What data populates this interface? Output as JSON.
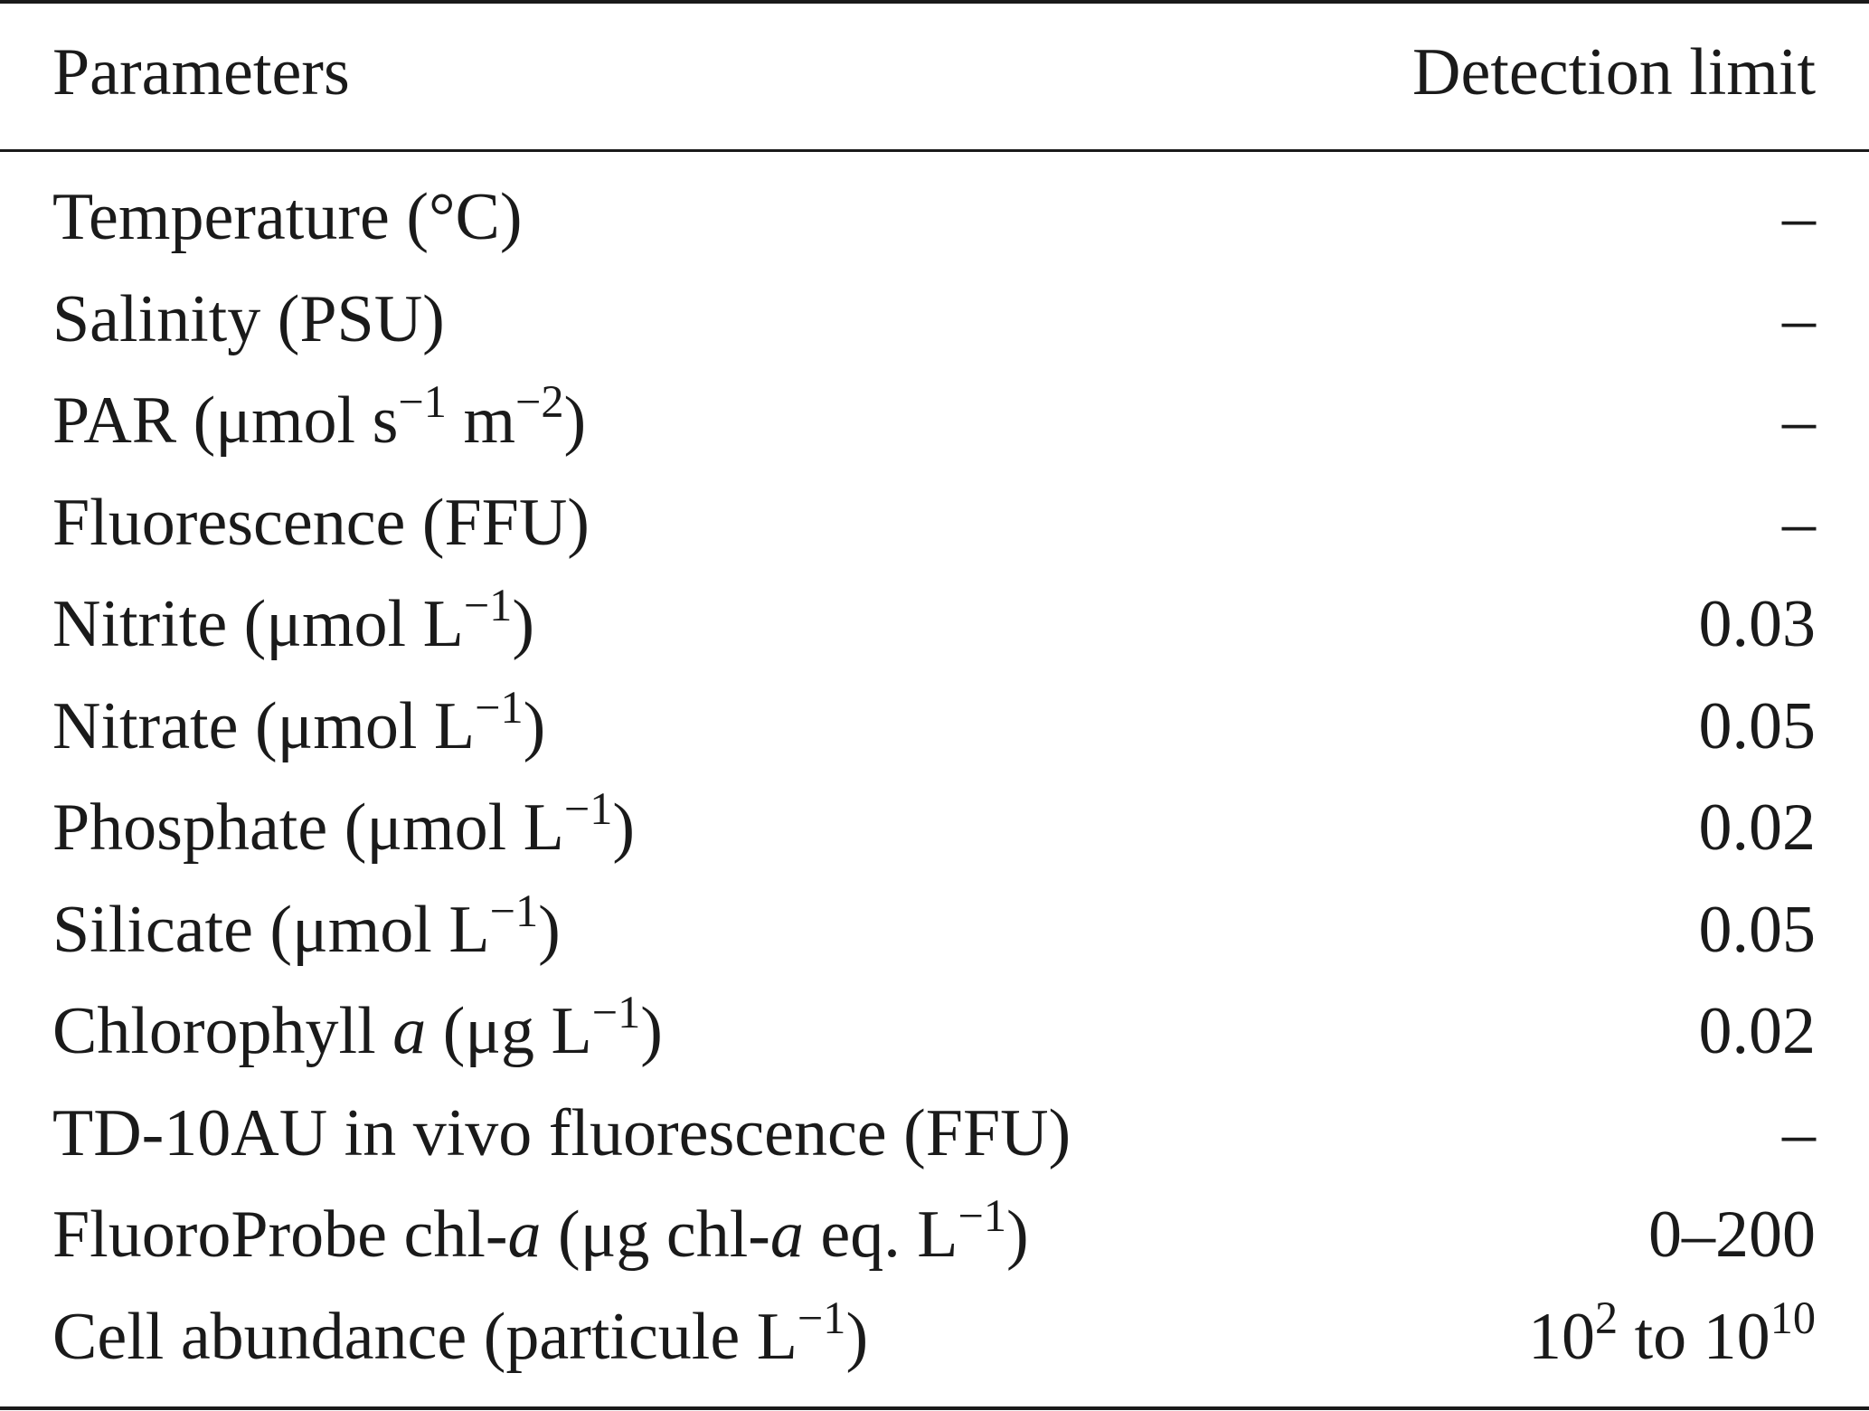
{
  "table": {
    "headers": {
      "parameters": "Parameters",
      "detection_limit": "Detection limit"
    },
    "rows": [
      {
        "parameter": "Temperature (°C)",
        "limit": "–"
      },
      {
        "parameter": "Salinity (PSU)",
        "limit": "–"
      },
      {
        "parameter": "PAR (μmol s−1 m−2)",
        "limit": "–"
      },
      {
        "parameter": "Fluorescence (FFU)",
        "limit": "–"
      },
      {
        "parameter": "Nitrite (μmol L−1)",
        "limit": "0.03"
      },
      {
        "parameter": "Nitrate (μmol L−1)",
        "limit": "0.05"
      },
      {
        "parameter": "Phosphate (μmol L−1)",
        "limit": "0.02"
      },
      {
        "parameter": "Silicate (μmol L−1)",
        "limit": "0.05"
      },
      {
        "parameter": "Chlorophyll a (μg L−1)",
        "limit": "0.02"
      },
      {
        "parameter": "TD-10AU in vivo fluorescence (FFU)",
        "limit": "–"
      },
      {
        "parameter": "FluoroProbe chl-a (μg chl-a eq. L−1)",
        "limit": "0–200"
      },
      {
        "parameter": "Cell abundance (particule L−1)",
        "limit": "10^2 to 10^10"
      }
    ]
  }
}
